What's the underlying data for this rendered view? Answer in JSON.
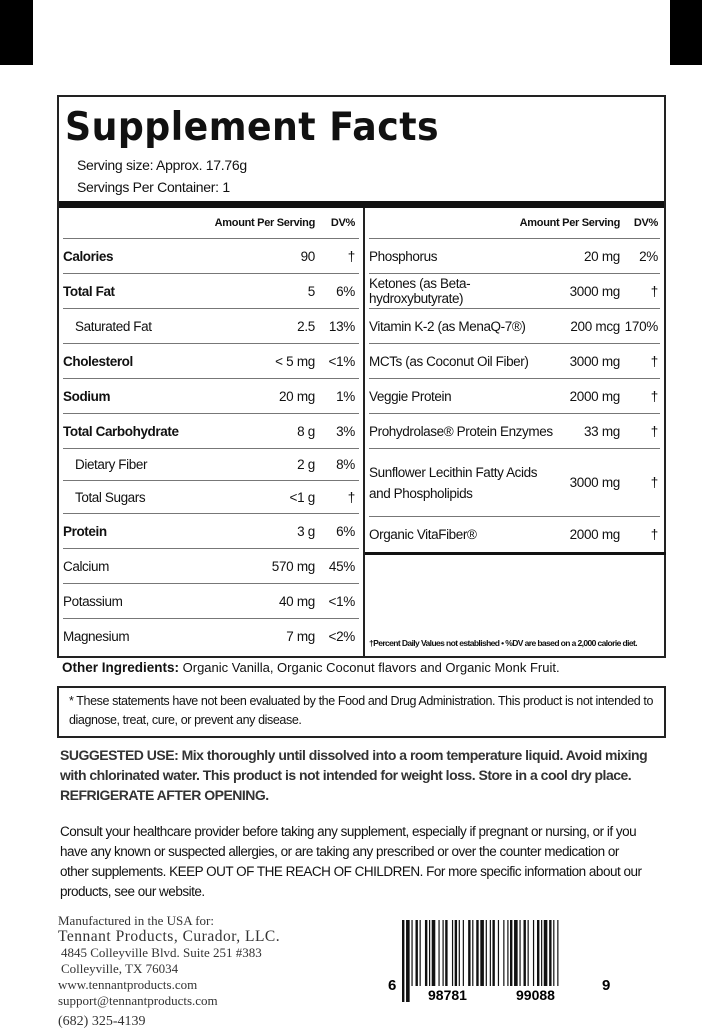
{
  "title": "Supplement Facts",
  "serving_size": "Serving size: Approx.  17.76g",
  "servings_per_container": "Servings Per Container: 1",
  "header": {
    "amount": "Amount Per Serving",
    "dv": "DV%"
  },
  "left_rows": [
    {
      "name": "Calories",
      "amount": "90",
      "dv": "†",
      "bold": true
    },
    {
      "name": "Total Fat",
      "amount": "5",
      "dv": "6%",
      "bold": true
    },
    {
      "name": "Saturated Fat",
      "amount": "2.5",
      "dv": "13%",
      "indent": true
    },
    {
      "name": "Cholesterol",
      "amount": "< 5 mg",
      "dv": "<1%",
      "bold": true
    },
    {
      "name": "Sodium",
      "amount": "20 mg",
      "dv": "1%",
      "bold": true
    },
    {
      "name": "Total Carbohydrate",
      "amount": "8 g",
      "dv": "3%",
      "bold": true
    },
    {
      "name": "Dietary Fiber",
      "amount": "2 g",
      "dv": "8%",
      "indent": true
    },
    {
      "name": "Total Sugars",
      "amount": "<1 g",
      "dv": "†",
      "indent": true
    },
    {
      "name": "Protein",
      "amount": "3 g",
      "dv": "6%",
      "bold": true
    },
    {
      "name": "Calcium",
      "amount": "570 mg",
      "dv": "45%"
    },
    {
      "name": "Potassium",
      "amount": "40 mg",
      "dv": "<1%"
    },
    {
      "name": "Magnesium",
      "amount": "7 mg",
      "dv": "<2%"
    }
  ],
  "right_rows": [
    {
      "name": "Phosphorus",
      "amount": "20 mg",
      "dv": "2%"
    },
    {
      "name": "Ketones (as Beta-hydroxybutyrate)",
      "amount": "3000 mg",
      "dv": "†"
    },
    {
      "name": "Vitamin K-2 (as MenaQ-7®)",
      "amount": "200 mcg",
      "dv": "170%"
    },
    {
      "name": "MCTs (as Coconut Oil Fiber)",
      "amount": "3000 mg",
      "dv": "†"
    },
    {
      "name": "Veggie Protein",
      "amount": "2000 mg",
      "dv": "†"
    },
    {
      "name": "Prohydrolase® Protein Enzymes",
      "amount": "33 mg",
      "dv": "†"
    },
    {
      "name": "Sunflower Lecithin Fatty Acids",
      "name2": "and Phospholipids",
      "amount": "3000 mg",
      "dv": "†"
    },
    {
      "name": "Organic VitaFiber®",
      "amount": "2000 mg",
      "dv": "†"
    }
  ],
  "footnote": "†Percent Daily Values not established • %DV are based on a 2,000 calorie diet.",
  "other_ingredients": {
    "label": "Other Ingredients:",
    "text": " Organic Vanilla, Organic Coconut flavors and Organic Monk Fruit."
  },
  "disclaimer": "* These statements have not been evaluated by the Food and Drug Administration. This product is not intended to diagnose, treat, cure, or prevent any disease.",
  "suggested_use": "SUGGESTED USE: Mix thoroughly until dissolved into a room temperature liquid. Avoid mixing with chlorinated water. This product is not intended for weight loss. Store in a cool dry place. REFRIGERATE AFTER OPENING.",
  "consult": "Consult your healthcare provider before  taking any supplement, especially if pregnant or nursing, or if you have any known or suspected allergies, or are taking any prescribed or over the counter medication or other supplements. KEEP OUT OF THE REACH OF CHILDREN. For more specific information about our products, see our website.",
  "address": {
    "line1": "Manufactured in the USA for:",
    "company": "Tennant  Products,  Curador,  LLC.",
    "street": "4845 Colleyville Blvd. Suite 251 #383",
    "city": "Colleyville, TX 76034",
    "web": "www.tennantproducts.com",
    "email": "support@tennantproducts.com",
    "phone": "(682)  325-4139"
  },
  "barcode": {
    "first": "6",
    "left": "98781",
    "right": "99088",
    "last": "9"
  }
}
